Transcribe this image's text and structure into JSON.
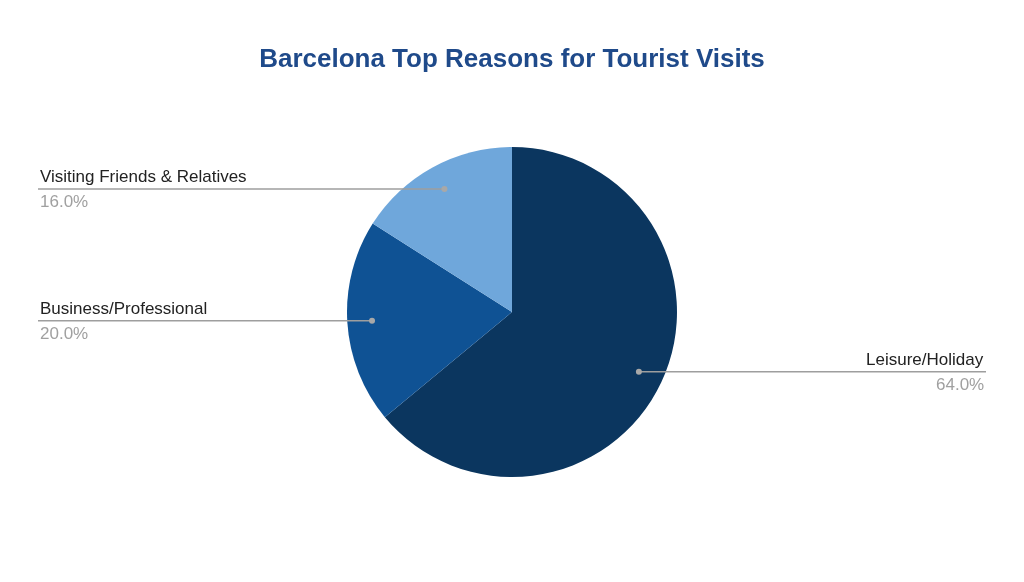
{
  "chart_data": {
    "type": "pie",
    "title": "Barcelona Top Reasons for Tourist Visits",
    "categories": [
      "Leisure/Holiday",
      "Business/Professional",
      "Visiting Friends & Relatives"
    ],
    "values": [
      64,
      20,
      16
    ],
    "value_labels": [
      "64.0%",
      "20.0%",
      "16.0%"
    ],
    "colors": [
      "#0b365f",
      "#0f5294",
      "#6fa7db"
    ]
  }
}
